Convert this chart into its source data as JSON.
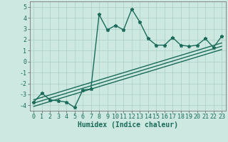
{
  "xlabel": "Humidex (Indice chaleur)",
  "ylabel": "",
  "bg_color": "#cce8e0",
  "line_color": "#1a6b5a",
  "grid_color": "#aacfc7",
  "xlim": [
    -0.5,
    23.5
  ],
  "ylim": [
    -4.5,
    5.5
  ],
  "xticks": [
    0,
    1,
    2,
    3,
    4,
    5,
    6,
    7,
    8,
    9,
    10,
    11,
    12,
    13,
    14,
    15,
    16,
    17,
    18,
    19,
    20,
    21,
    22,
    23
  ],
  "yticks": [
    -4,
    -3,
    -2,
    -1,
    0,
    1,
    2,
    3,
    4,
    5
  ],
  "main_x": [
    0,
    1,
    2,
    3,
    4,
    5,
    6,
    7,
    8,
    9,
    10,
    11,
    12,
    13,
    14,
    15,
    16,
    17,
    18,
    19,
    20,
    21,
    22,
    23
  ],
  "main_y": [
    -3.7,
    -2.9,
    -3.5,
    -3.6,
    -3.7,
    -4.2,
    -2.6,
    -2.5,
    4.3,
    2.9,
    3.3,
    2.9,
    4.8,
    3.6,
    2.1,
    1.5,
    1.5,
    2.2,
    1.5,
    1.4,
    1.5,
    2.1,
    1.3,
    2.3
  ],
  "reg_lines": [
    {
      "x0": 0,
      "y0": -4.1,
      "x1": 23,
      "y1": 1.1
    },
    {
      "x0": 0,
      "y0": -3.8,
      "x1": 23,
      "y1": 1.4
    },
    {
      "x0": 0,
      "y0": -3.5,
      "x1": 23,
      "y1": 1.7
    }
  ],
  "marker_size": 3.5,
  "line_width": 1.0,
  "font_size_label": 7,
  "font_size_tick": 6
}
